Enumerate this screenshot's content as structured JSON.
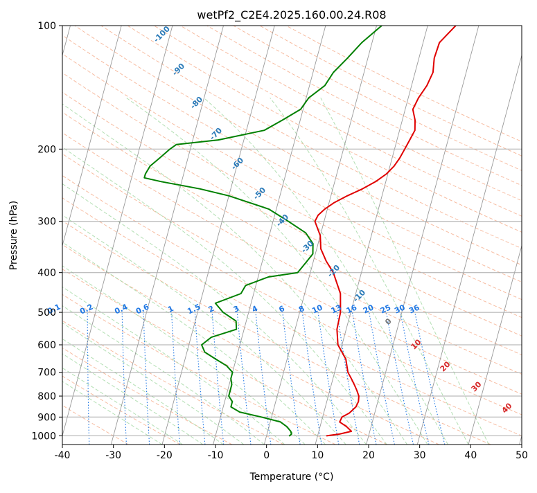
{
  "chart_data": {
    "type": "line",
    "title": "wetPf2_C2E4.2025.160.00.24.R08",
    "xlabel": "Temperature (°C)",
    "ylabel": "Pressure (hPa)",
    "xlim": [
      -40,
      50
    ],
    "ylim": [
      1050,
      100
    ],
    "y_scale": "log",
    "grid": true,
    "x_ticks": [
      -40,
      -30,
      -20,
      -10,
      0,
      10,
      20,
      30,
      40,
      50
    ],
    "y_ticks": [
      100,
      200,
      300,
      400,
      500,
      600,
      700,
      800,
      900,
      1000
    ],
    "colors": {
      "temperature": "#e00000",
      "dewpoint": "#008000",
      "dry_adiabat": "#f4a582",
      "moist_adiabat": "#a6d9a6",
      "mixing_ratio": "#1f77e4",
      "isotherm": "#888888",
      "isobar": "#aaaaaa"
    },
    "series": [
      {
        "key": "temperature",
        "pressure": [
          1000,
          990,
          975,
          950,
          925,
          900,
          880,
          850,
          825,
          800,
          775,
          750,
          725,
          700,
          650,
          600,
          550,
          500,
          450,
          400,
          375,
          350,
          325,
          300,
          290,
          280,
          270,
          260,
          250,
          240,
          230,
          220,
          210,
          200,
          190,
          180,
          170,
          160,
          150,
          140,
          130,
          120,
          110,
          100
        ],
        "values": [
          11.8,
          14.2,
          16.4,
          15.2,
          13.6,
          13.8,
          15.0,
          16.0,
          16.2,
          16.0,
          15.3,
          14.5,
          13.6,
          12.6,
          11.5,
          9.2,
          8.2,
          8.0,
          7.0,
          4.5,
          2.5,
          0.8,
          0.0,
          -1.8,
          -1.5,
          -0.5,
          1.0,
          3.2,
          5.8,
          8.0,
          9.7,
          10.8,
          11.5,
          12.0,
          12.5,
          13.0,
          12.5,
          11.5,
          12.0,
          13.0,
          13.5,
          13.0,
          13.2,
          15.5
        ]
      },
      {
        "key": "dewpoint",
        "pressure": [
          1000,
          990,
          975,
          950,
          925,
          900,
          875,
          850,
          825,
          800,
          775,
          750,
          725,
          700,
          675,
          650,
          625,
          600,
          575,
          550,
          525,
          500,
          475,
          450,
          430,
          410,
          400,
          380,
          360,
          340,
          320,
          300,
          280,
          260,
          250,
          240,
          235,
          230,
          220,
          210,
          200,
          195,
          190,
          180,
          170,
          160,
          150,
          140,
          130,
          120,
          110,
          100
        ],
        "values": [
          4.5,
          4.8,
          4.5,
          3.5,
          2.0,
          -2.0,
          -6.5,
          -8.5,
          -8.5,
          -9.5,
          -9.5,
          -9.5,
          -10.0,
          -10.0,
          -11.5,
          -14.0,
          -16.5,
          -17.5,
          -16.0,
          -11.5,
          -12.0,
          -15.0,
          -17.0,
          -12.5,
          -12.0,
          -8.0,
          -2.5,
          -1.5,
          -0.5,
          -1.0,
          -3.0,
          -7.0,
          -11.5,
          -20.0,
          -26.0,
          -34.0,
          -37.5,
          -37.5,
          -37.0,
          -35.5,
          -34.0,
          -33.0,
          -25.0,
          -16.5,
          -13.5,
          -10.5,
          -9.5,
          -7.0,
          -6.0,
          -4.0,
          -2.0,
          1.0
        ]
      }
    ],
    "mixing_ratio_labels": [
      "0.1",
      "0.2",
      "0.4",
      "0.6",
      "1",
      "1.5",
      "2",
      "3",
      "4",
      "6",
      "8",
      "10",
      "13",
      "16",
      "20",
      "25",
      "30",
      "36"
    ],
    "mixing_ratio_values": [
      0.1,
      0.2,
      0.4,
      0.6,
      1,
      1.5,
      2,
      3,
      4,
      6,
      8,
      10,
      13,
      16,
      20,
      25,
      30,
      36
    ],
    "moist_labels_blue": [
      "-100",
      "-90",
      "-80",
      "-70",
      "-60",
      "-50",
      "-40",
      "-30",
      "-20",
      "-10"
    ],
    "moist_labels_blue_values": [
      -100,
      -90,
      -80,
      -70,
      -60,
      -50,
      -40,
      -30,
      -20,
      -10
    ],
    "moist_label_gray": "0",
    "moist_labels_red": [
      "10",
      "20",
      "30",
      "40"
    ],
    "moist_labels_red_values": [
      10,
      20,
      30,
      40
    ]
  }
}
